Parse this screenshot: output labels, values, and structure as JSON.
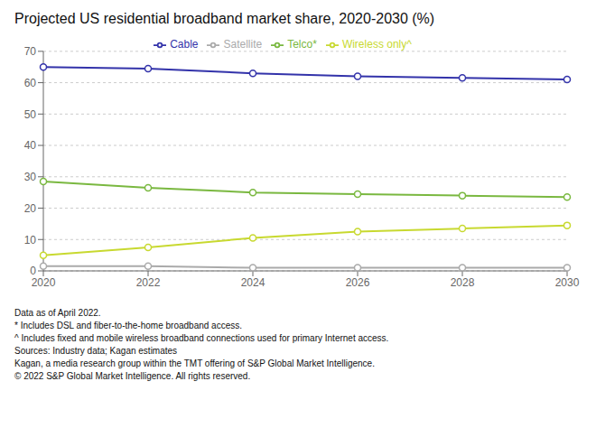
{
  "chart_data": {
    "type": "line",
    "title": "Projected US residential broadband market share, 2020-2030 (%)",
    "x": [
      2020,
      2022,
      2024,
      2026,
      2028,
      2030
    ],
    "series": [
      {
        "name": "Cable",
        "color": "#3333aa",
        "values": [
          65.0,
          64.5,
          63.0,
          62.0,
          61.5,
          61.0
        ]
      },
      {
        "name": "Telco*",
        "color": "#7ab840",
        "values": [
          28.5,
          26.5,
          25.0,
          24.5,
          24.0,
          23.5
        ]
      },
      {
        "name": "Wireless only^",
        "color": "#c8d930",
        "values": [
          5.0,
          7.5,
          10.5,
          12.5,
          13.5,
          14.5
        ]
      },
      {
        "name": "Satellite",
        "color": "#aaaaaa",
        "values": [
          1.5,
          1.5,
          1.0,
          1.0,
          1.0,
          1.0
        ]
      }
    ],
    "xlim": [
      2020,
      2030
    ],
    "xticks": [
      2020,
      2022,
      2024,
      2026,
      2028,
      2030
    ],
    "ylim": [
      0,
      70
    ],
    "yticks": [
      0,
      10,
      20,
      30,
      40,
      50,
      60,
      70
    ],
    "grid": true,
    "legend": "top",
    "marker": "circle",
    "annotations": [
      "Data as of April 2022.",
      "* Includes DSL and fiber-to-the-home broadband access.",
      "^ Includes fixed and mobile wireless broadband connections used for primary Internet access.",
      "Sources: Industry data; Kagan estimates",
      "Kagan, a media research group within the TMT offering of S&P Global Market Intelligence.",
      "© 2022 S&P Global Market Intelligence. All rights reserved."
    ]
  }
}
